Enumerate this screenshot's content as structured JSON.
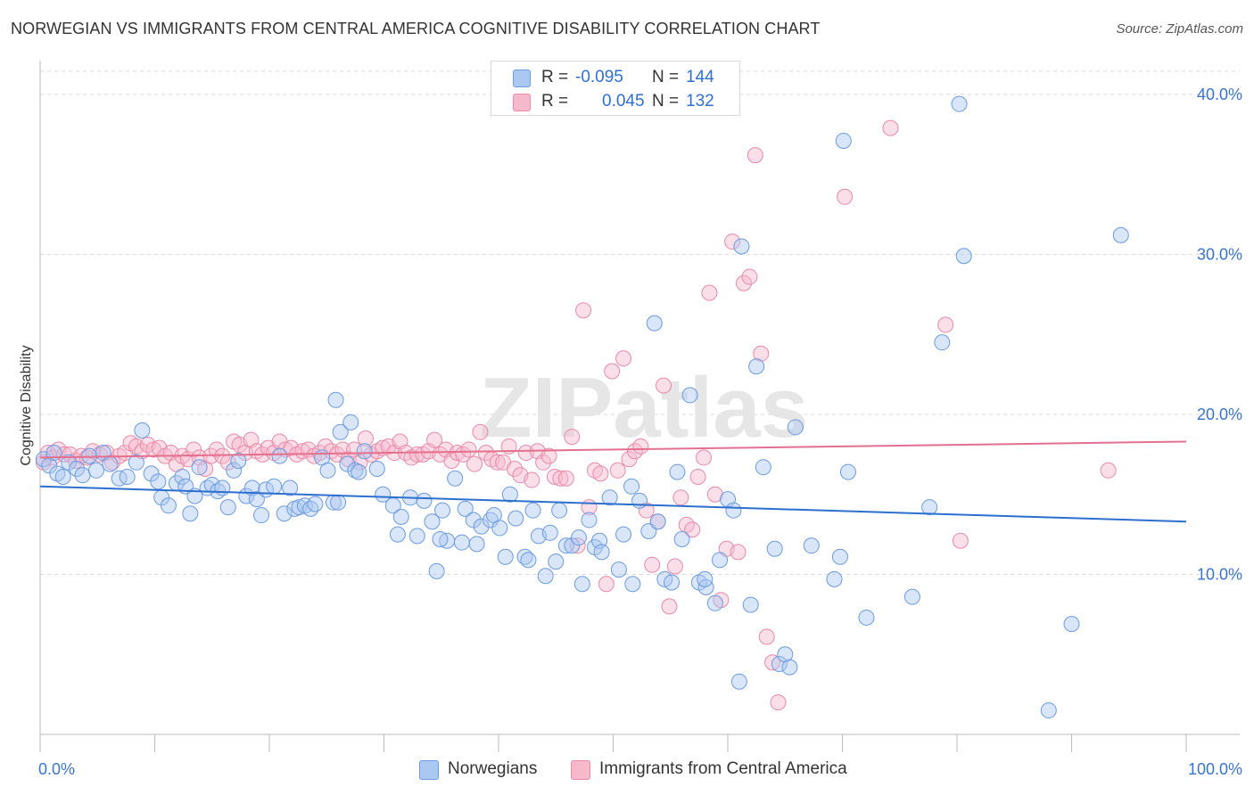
{
  "title": "NORWEGIAN VS IMMIGRANTS FROM CENTRAL AMERICA COGNITIVE DISABILITY CORRELATION CHART",
  "source": "Source: ZipAtlas.com",
  "watermark": "ZIPatlas",
  "colors": {
    "blue_fill": "#aac8f2",
    "blue_stroke": "#6b9be0",
    "blue_line": "#2d6fcf",
    "pink_fill": "#f6b8cb",
    "pink_stroke": "#e88aa8",
    "pink_line": "#e4708f",
    "axis_label": "#3a74c8",
    "grid": "#d9d9d9"
  },
  "legend": {
    "rows": [
      {
        "r_label": "R =",
        "r_value": "-0.095",
        "n_label": "N =",
        "n_value": "144"
      },
      {
        "r_label": "R =",
        "r_value": "0.045",
        "n_label": "N =",
        "n_value": "132"
      }
    ],
    "series": [
      "Norwegians",
      "Immigrants from Central America"
    ]
  },
  "chart_data": {
    "type": "scatter",
    "title": "NORWEGIAN VS IMMIGRANTS FROM CENTRAL AMERICA COGNITIVE DISABILITY CORRELATION CHART",
    "xlabel": "",
    "ylabel": "Cognitive Disability",
    "xlim": [
      0,
      100
    ],
    "ylim": [
      0,
      42
    ],
    "x_tick_labels": [
      "0.0%",
      "100.0%"
    ],
    "y_ticks": [
      10,
      20,
      30,
      40
    ],
    "y_tick_labels": [
      "10.0%",
      "20.0%",
      "30.0%",
      "40.0%"
    ],
    "grid": true,
    "legend_position": "top-center",
    "series": [
      {
        "name": "Norwegians",
        "r": -0.095,
        "n": 144,
        "trend": {
          "x": [
            0,
            100
          ],
          "y": [
            15.5,
            13.3
          ]
        },
        "points": [
          [
            0.3,
            17.2
          ],
          [
            0.8,
            16.8
          ],
          [
            1.2,
            17.6
          ],
          [
            1.5,
            16.3
          ],
          [
            2.0,
            16.1
          ],
          [
            2.5,
            17.0
          ],
          [
            3.2,
            16.6
          ],
          [
            3.7,
            16.2
          ],
          [
            4.3,
            17.4
          ],
          [
            4.9,
            16.5
          ],
          [
            5.5,
            17.6
          ],
          [
            6.1,
            16.9
          ],
          [
            6.9,
            16.0
          ],
          [
            7.6,
            16.1
          ],
          [
            8.4,
            17.0
          ],
          [
            8.9,
            19.0
          ],
          [
            9.7,
            16.3
          ],
          [
            10.3,
            15.8
          ],
          [
            10.6,
            14.8
          ],
          [
            11.2,
            14.3
          ],
          [
            11.9,
            15.7
          ],
          [
            12.4,
            16.1
          ],
          [
            12.7,
            15.5
          ],
          [
            13.1,
            13.8
          ],
          [
            13.5,
            14.9
          ],
          [
            13.9,
            16.7
          ],
          [
            14.6,
            15.4
          ],
          [
            15.0,
            15.6
          ],
          [
            15.5,
            15.2
          ],
          [
            15.9,
            15.4
          ],
          [
            16.4,
            14.2
          ],
          [
            16.9,
            16.5
          ],
          [
            17.3,
            17.1
          ],
          [
            18.0,
            14.9
          ],
          [
            18.5,
            15.4
          ],
          [
            18.9,
            14.7
          ],
          [
            19.3,
            13.7
          ],
          [
            19.7,
            15.3
          ],
          [
            20.4,
            15.5
          ],
          [
            20.9,
            17.4
          ],
          [
            21.3,
            13.8
          ],
          [
            21.8,
            15.4
          ],
          [
            22.2,
            14.1
          ],
          [
            22.6,
            14.2
          ],
          [
            23.1,
            14.3
          ],
          [
            23.6,
            14.1
          ],
          [
            24.0,
            14.4
          ],
          [
            24.6,
            17.3
          ],
          [
            25.1,
            16.5
          ],
          [
            25.6,
            14.5
          ],
          [
            26.0,
            14.5
          ],
          [
            25.8,
            20.9
          ],
          [
            26.2,
            18.9
          ],
          [
            27.1,
            19.5
          ],
          [
            26.8,
            16.9
          ],
          [
            27.5,
            16.5
          ],
          [
            27.8,
            16.4
          ],
          [
            28.3,
            17.7
          ],
          [
            29.4,
            16.6
          ],
          [
            29.9,
            15.0
          ],
          [
            30.8,
            14.3
          ],
          [
            31.2,
            12.5
          ],
          [
            31.5,
            13.6
          ],
          [
            32.3,
            14.8
          ],
          [
            32.9,
            12.4
          ],
          [
            33.5,
            14.6
          ],
          [
            34.2,
            13.3
          ],
          [
            34.6,
            10.2
          ],
          [
            35.1,
            14.0
          ],
          [
            35.5,
            12.1
          ],
          [
            36.2,
            16.0
          ],
          [
            36.8,
            12.0
          ],
          [
            37.1,
            14.1
          ],
          [
            37.8,
            13.4
          ],
          [
            38.1,
            11.9
          ],
          [
            38.5,
            13.0
          ],
          [
            39.3,
            13.4
          ],
          [
            39.6,
            13.7
          ],
          [
            40.1,
            12.9
          ],
          [
            40.6,
            11.1
          ],
          [
            41.0,
            15.0
          ],
          [
            41.5,
            13.5
          ],
          [
            42.3,
            11.1
          ],
          [
            42.6,
            10.9
          ],
          [
            43.0,
            14.0
          ],
          [
            43.5,
            12.4
          ],
          [
            44.1,
            9.9
          ],
          [
            44.5,
            12.6
          ],
          [
            45.0,
            10.8
          ],
          [
            45.3,
            14.0
          ],
          [
            45.9,
            11.8
          ],
          [
            46.4,
            11.8
          ],
          [
            47.0,
            12.3
          ],
          [
            47.3,
            9.4
          ],
          [
            47.9,
            13.4
          ],
          [
            48.4,
            11.7
          ],
          [
            48.8,
            12.1
          ],
          [
            49.0,
            11.4
          ],
          [
            49.7,
            14.8
          ],
          [
            50.5,
            10.3
          ],
          [
            50.9,
            12.5
          ],
          [
            51.6,
            15.5
          ],
          [
            51.7,
            9.4
          ],
          [
            52.3,
            14.6
          ],
          [
            53.1,
            12.7
          ],
          [
            53.6,
            25.7
          ],
          [
            53.9,
            13.3
          ],
          [
            54.5,
            9.7
          ],
          [
            55.1,
            9.5
          ],
          [
            55.6,
            16.4
          ],
          [
            56.0,
            12.2
          ],
          [
            56.7,
            21.2
          ],
          [
            57.5,
            9.5
          ],
          [
            58.1,
            9.2
          ],
          [
            58.9,
            8.2
          ],
          [
            59.3,
            10.9
          ],
          [
            60.0,
            14.7
          ],
          [
            60.5,
            14.0
          ],
          [
            61.2,
            30.5
          ],
          [
            62.0,
            8.1
          ],
          [
            62.5,
            23.0
          ],
          [
            63.1,
            16.7
          ],
          [
            64.1,
            11.6
          ],
          [
            64.5,
            4.4
          ],
          [
            65.0,
            5.0
          ],
          [
            65.4,
            4.2
          ],
          [
            65.9,
            19.2
          ],
          [
            67.3,
            11.8
          ],
          [
            69.3,
            9.7
          ],
          [
            69.8,
            11.1
          ],
          [
            70.1,
            37.1
          ],
          [
            70.5,
            16.4
          ],
          [
            72.1,
            7.3
          ],
          [
            76.1,
            8.6
          ],
          [
            77.6,
            14.2
          ],
          [
            78.7,
            24.5
          ],
          [
            80.2,
            39.4
          ],
          [
            80.6,
            29.9
          ],
          [
            88.0,
            1.5
          ],
          [
            90.0,
            6.9
          ],
          [
            94.3,
            31.2
          ],
          [
            58.0,
            9.7
          ],
          [
            61.0,
            3.3
          ],
          [
            34.9,
            12.2
          ]
        ]
      },
      {
        "name": "Immigrants from Central America",
        "r": 0.045,
        "n": 132,
        "trend": {
          "x": [
            0,
            100
          ],
          "y": [
            17.3,
            18.3
          ]
        },
        "points": [
          [
            0.3,
            17.0
          ],
          [
            0.7,
            17.6
          ],
          [
            1.1,
            17.3
          ],
          [
            1.6,
            17.8
          ],
          [
            2.1,
            17.5
          ],
          [
            2.6,
            17.5
          ],
          [
            3.1,
            17.1
          ],
          [
            3.6,
            17.4
          ],
          [
            4.1,
            17.3
          ],
          [
            4.6,
            17.7
          ],
          [
            5.2,
            17.5
          ],
          [
            5.8,
            17.6
          ],
          [
            6.3,
            17.0
          ],
          [
            6.9,
            17.4
          ],
          [
            7.4,
            17.6
          ],
          [
            7.9,
            18.2
          ],
          [
            8.4,
            18.0
          ],
          [
            8.9,
            17.7
          ],
          [
            9.4,
            18.1
          ],
          [
            9.9,
            17.8
          ],
          [
            10.4,
            17.9
          ],
          [
            10.9,
            17.4
          ],
          [
            11.4,
            17.6
          ],
          [
            11.9,
            16.9
          ],
          [
            12.4,
            17.4
          ],
          [
            12.9,
            17.2
          ],
          [
            13.4,
            17.8
          ],
          [
            13.9,
            17.3
          ],
          [
            14.4,
            16.6
          ],
          [
            14.9,
            17.4
          ],
          [
            15.4,
            17.8
          ],
          [
            15.9,
            17.4
          ],
          [
            16.4,
            17.0
          ],
          [
            16.9,
            18.3
          ],
          [
            17.4,
            18.1
          ],
          [
            17.9,
            17.6
          ],
          [
            18.4,
            18.4
          ],
          [
            18.9,
            17.7
          ],
          [
            19.4,
            17.5
          ],
          [
            19.9,
            17.9
          ],
          [
            20.4,
            17.6
          ],
          [
            20.9,
            18.3
          ],
          [
            21.4,
            17.8
          ],
          [
            21.9,
            17.9
          ],
          [
            22.4,
            17.5
          ],
          [
            22.9,
            17.7
          ],
          [
            23.4,
            17.8
          ],
          [
            23.9,
            17.4
          ],
          [
            24.4,
            17.6
          ],
          [
            24.9,
            18.0
          ],
          [
            25.4,
            17.7
          ],
          [
            25.9,
            17.5
          ],
          [
            26.4,
            17.8
          ],
          [
            26.9,
            17.2
          ],
          [
            27.4,
            17.8
          ],
          [
            27.9,
            17.0
          ],
          [
            28.4,
            18.5
          ],
          [
            28.9,
            17.5
          ],
          [
            29.4,
            17.7
          ],
          [
            29.9,
            17.9
          ],
          [
            30.4,
            18.0
          ],
          [
            30.9,
            17.6
          ],
          [
            31.4,
            18.3
          ],
          [
            31.9,
            17.6
          ],
          [
            32.4,
            17.3
          ],
          [
            32.9,
            17.5
          ],
          [
            33.4,
            17.5
          ],
          [
            33.9,
            17.7
          ],
          [
            34.4,
            18.4
          ],
          [
            34.9,
            17.5
          ],
          [
            35.4,
            17.8
          ],
          [
            35.9,
            17.1
          ],
          [
            36.4,
            17.6
          ],
          [
            36.9,
            17.5
          ],
          [
            37.4,
            17.8
          ],
          [
            37.9,
            16.9
          ],
          [
            38.4,
            18.9
          ],
          [
            38.9,
            17.6
          ],
          [
            39.4,
            17.2
          ],
          [
            39.9,
            17.0
          ],
          [
            40.4,
            17.0
          ],
          [
            40.9,
            18.0
          ],
          [
            41.4,
            16.6
          ],
          [
            41.9,
            16.2
          ],
          [
            42.4,
            17.6
          ],
          [
            42.9,
            15.9
          ],
          [
            43.4,
            17.7
          ],
          [
            43.9,
            17.0
          ],
          [
            44.4,
            17.4
          ],
          [
            44.9,
            16.1
          ],
          [
            45.4,
            16.0
          ],
          [
            45.9,
            16.0
          ],
          [
            46.4,
            18.6
          ],
          [
            46.9,
            11.8
          ],
          [
            47.4,
            26.5
          ],
          [
            47.9,
            14.2
          ],
          [
            48.4,
            16.5
          ],
          [
            48.9,
            16.3
          ],
          [
            49.4,
            9.4
          ],
          [
            49.9,
            22.7
          ],
          [
            50.4,
            16.5
          ],
          [
            50.9,
            23.5
          ],
          [
            51.4,
            17.2
          ],
          [
            51.9,
            17.7
          ],
          [
            52.4,
            18.0
          ],
          [
            52.9,
            14.0
          ],
          [
            53.4,
            10.6
          ],
          [
            53.9,
            13.3
          ],
          [
            54.4,
            21.8
          ],
          [
            54.9,
            8.0
          ],
          [
            55.4,
            10.5
          ],
          [
            55.9,
            14.8
          ],
          [
            56.4,
            13.1
          ],
          [
            56.9,
            12.8
          ],
          [
            57.4,
            16.1
          ],
          [
            57.9,
            17.3
          ],
          [
            58.4,
            27.6
          ],
          [
            58.9,
            15.0
          ],
          [
            59.4,
            8.4
          ],
          [
            59.9,
            11.6
          ],
          [
            60.4,
            30.8
          ],
          [
            60.9,
            11.4
          ],
          [
            61.4,
            28.2
          ],
          [
            61.9,
            28.6
          ],
          [
            62.4,
            36.2
          ],
          [
            62.9,
            23.8
          ],
          [
            63.4,
            6.1
          ],
          [
            63.9,
            4.5
          ],
          [
            64.4,
            2.0
          ],
          [
            70.2,
            33.6
          ],
          [
            74.2,
            37.9
          ],
          [
            79.0,
            25.6
          ],
          [
            80.3,
            12.1
          ],
          [
            93.2,
            16.5
          ]
        ]
      }
    ]
  }
}
